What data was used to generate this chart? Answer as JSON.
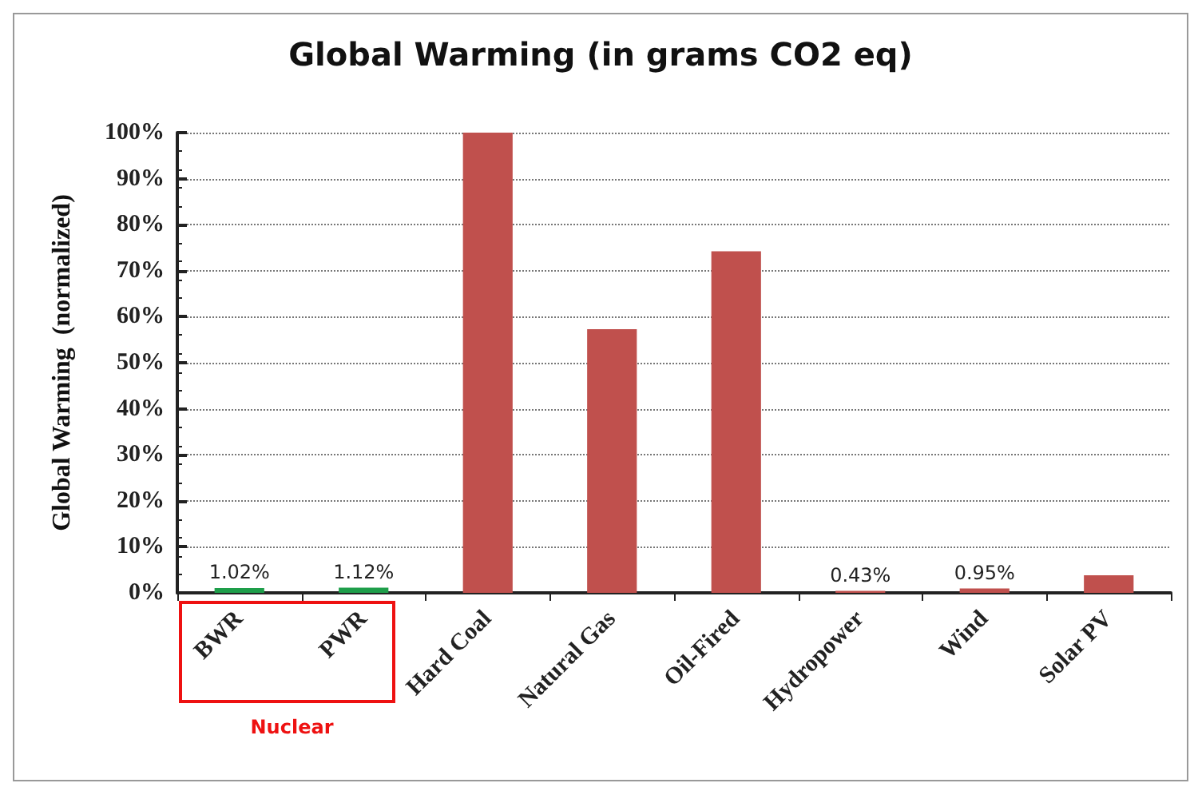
{
  "chart_data": {
    "type": "bar",
    "title": "Global Warming (in grams CO2 eq)",
    "ylabel": "Global Warming  (normalized)",
    "categories": [
      "BWR",
      "PWR",
      "Hard Coal",
      "Natural Gas",
      "Oil-Fired",
      "Hydropower",
      "Wind",
      "Solar PV"
    ],
    "values": [
      1.02,
      1.12,
      100,
      57.3,
      74.2,
      0.43,
      0.95,
      3.8
    ],
    "colors": [
      "#1e9e4a",
      "#1e9e4a",
      "#c0504d",
      "#c0504d",
      "#c0504d",
      "#c0504d",
      "#c0504d",
      "#c0504d"
    ],
    "value_labels": [
      "1.02%",
      "1.12%",
      null,
      null,
      null,
      "0.43%",
      "0.95%",
      null
    ],
    "ylim": [
      0,
      100
    ],
    "yticks": [
      {
        "value": 0,
        "label": "0%"
      },
      {
        "value": 10,
        "label": "10%"
      },
      {
        "value": 20,
        "label": "20%"
      },
      {
        "value": 30,
        "label": "30%"
      },
      {
        "value": 40,
        "label": "40%"
      },
      {
        "value": 50,
        "label": "50%"
      },
      {
        "value": 60,
        "label": "60%"
      },
      {
        "value": 70,
        "label": "70%"
      },
      {
        "value": 80,
        "label": "80%"
      },
      {
        "value": 90,
        "label": "90%"
      },
      {
        "value": 100,
        "label": "100%"
      }
    ],
    "annotations": [
      "Nuclear"
    ],
    "grid": "y"
  }
}
